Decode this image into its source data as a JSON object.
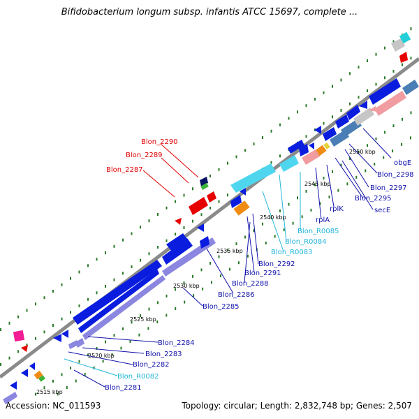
{
  "title": "Bifidobacterium longum subsp. infantis ATCC 15697, complete ...",
  "accession": "Accession: NC_011593",
  "topology": "Topology: circular; Length: 2,832,748 bp; Genes: 2,507",
  "colors": {
    "cds_dark_blue": "#0a1ddf",
    "cds_light_purple": "#8b86e0",
    "rrna_light_blue": "#4fd6ef",
    "trna_orange": "#f08c14",
    "hypothetical_gray": "#c6c6c6",
    "steel_blue": "#4a7eb5",
    "pink_salmon": "#f09ca1",
    "magenta": "#f21c95",
    "red_label": "#e00000",
    "blue_label": "#1010aa",
    "cyan_label": "#22b6d8",
    "green_tick": "#2a7a2a",
    "backbone_gray": "#8a8a8a"
  },
  "kbp_labels": [
    "2515 kbp",
    "2520 kbp",
    "2525 kbp",
    "2530 kbp",
    "2535 kbp",
    "2540 kbp",
    "2545 kbp",
    "2550 kbp"
  ],
  "gene_labels": {
    "red": [
      "Blon_2290",
      "Blon_2289",
      "Blon_2287"
    ],
    "right": [
      {
        "text": "obgE",
        "color": "blue"
      },
      {
        "text": "Blon_2298",
        "color": "blue"
      },
      {
        "text": "Blon_2297",
        "color": "blue"
      },
      {
        "text": "Blon_2295",
        "color": "blue"
      },
      {
        "text": "secE",
        "color": "blue"
      },
      {
        "text": "rplK",
        "color": "blue"
      },
      {
        "text": "rplA",
        "color": "blue"
      },
      {
        "text": "Blon_R0085",
        "color": "cyan"
      },
      {
        "text": "Blon_R0084",
        "color": "cyan"
      },
      {
        "text": "Blon_R0083",
        "color": "cyan"
      },
      {
        "text": "Blon_2292",
        "color": "blue"
      },
      {
        "text": "Blon_2291",
        "color": "blue"
      },
      {
        "text": "Blon_2288",
        "color": "blue"
      },
      {
        "text": "Blon_2286",
        "color": "blue"
      },
      {
        "text": "Blon_2285",
        "color": "blue"
      },
      {
        "text": "Blon_2284",
        "color": "blue"
      },
      {
        "text": "Blon_2283",
        "color": "blue"
      },
      {
        "text": "Blon_2282",
        "color": "blue"
      },
      {
        "text": "Blon_R0082",
        "color": "cyan"
      },
      {
        "text": "Blon_2281",
        "color": "blue"
      }
    ]
  }
}
